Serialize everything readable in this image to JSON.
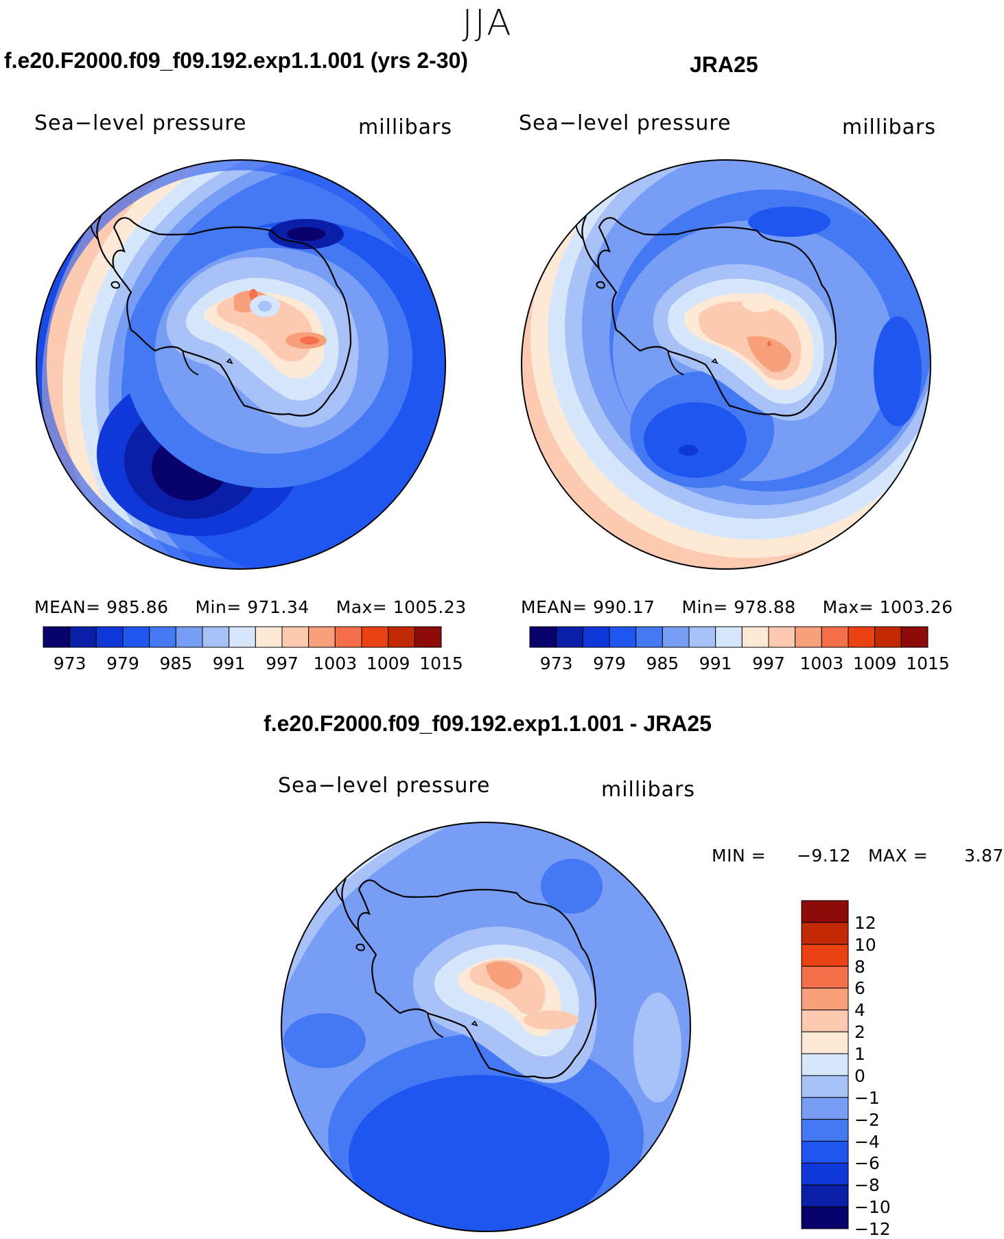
{
  "season": "JJA",
  "panels": [
    {
      "id": "model",
      "title": "f.e20.F2000.f09_f09.192.exp1.1.001 (yrs 2-30)",
      "variable": "Sea−level pressure",
      "units": "millibars",
      "mean_label": "MEAN=",
      "mean": "985.86",
      "min_label": "Min=",
      "min": "971.34",
      "max_label": "Max=",
      "max": "1005.23"
    },
    {
      "id": "obs",
      "title": "JRA25",
      "variable": "Sea−level pressure",
      "units": "millibars",
      "mean_label": "MEAN=",
      "mean": "990.17",
      "min_label": "Min=",
      "min": "978.88",
      "max_label": "Max=",
      "max": "1003.26"
    }
  ],
  "diff_panel": {
    "title": "f.e20.F2000.f09_f09.192.exp1.1.001 - JRA25",
    "variable": "Sea−level pressure",
    "units": "millibars",
    "min_label": "MIN =",
    "min": "−9.12",
    "max_label": "MAX =",
    "max": "3.87"
  },
  "abs_colorbar": {
    "colors": [
      "#08006b",
      "#0a1ea8",
      "#1038d8",
      "#1f56f0",
      "#4479f3",
      "#779df5",
      "#a8c2f7",
      "#d6e6fb",
      "#fde9d6",
      "#fccab0",
      "#f8a07c",
      "#f4704a",
      "#ea4214",
      "#c22a05",
      "#8d0c0a"
    ],
    "ticks": [
      "973",
      "979",
      "985",
      "991",
      "997",
      "1003",
      "1009",
      "1015"
    ]
  },
  "diff_colorbar": {
    "colors_top_to_bottom": [
      "#8d0c0a",
      "#c22a05",
      "#ea4214",
      "#f4704a",
      "#f8a07c",
      "#fccab0",
      "#fde9d6",
      "#d6e6fb",
      "#a8c2f7",
      "#779df5",
      "#4479f3",
      "#1f56f0",
      "#1038d8",
      "#0a1ea8",
      "#08006b"
    ],
    "ticks": [
      "12",
      "10",
      "8",
      "6",
      "4",
      "2",
      "1",
      "0",
      "−1",
      "−2",
      "−4",
      "−6",
      "−8",
      "−10",
      "−12"
    ]
  }
}
